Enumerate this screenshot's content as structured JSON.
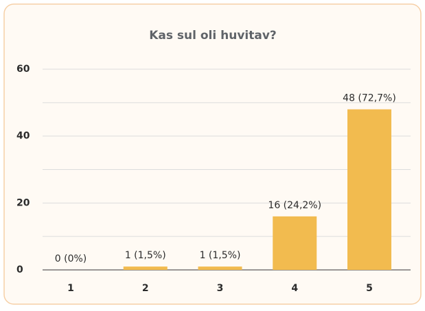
{
  "chart_data": {
    "type": "bar",
    "title": "Kas sul oli huvitav?",
    "categories": [
      "1",
      "2",
      "3",
      "4",
      "5"
    ],
    "values": [
      0,
      1,
      1,
      16,
      48
    ],
    "value_labels": [
      "0 (0%)",
      "1 (1,5%)",
      "1 (1,5%)",
      "16 (24,2%)",
      "48 (72,7%)"
    ],
    "color": "#f2bb4f",
    "ylim": [
      0,
      60
    ],
    "yticks": [
      0,
      20,
      40,
      60
    ],
    "grid": true
  }
}
